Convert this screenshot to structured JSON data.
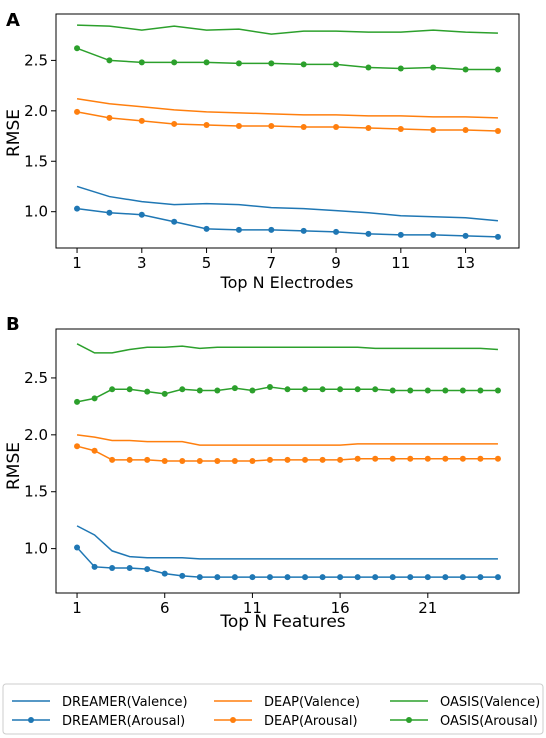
{
  "chart_data": [
    {
      "type": "line",
      "panel_label": "A",
      "xlabel": "Top N Electrodes",
      "ylabel": "RMSE",
      "x_ticks": [
        1,
        3,
        5,
        7,
        9,
        11,
        13
      ],
      "y_ticks": [
        1.0,
        1.5,
        2.0,
        2.5
      ],
      "x_tick_labels": [
        "1",
        "3",
        "5",
        "7",
        "9",
        "11",
        "13"
      ],
      "y_tick_labels": [
        "1.0",
        "1.5",
        "2.0",
        "2.5"
      ],
      "xlim": [
        0.35,
        14.65
      ],
      "ylim": [
        0.64,
        2.96
      ],
      "grid": false,
      "x": [
        1,
        2,
        3,
        4,
        5,
        6,
        7,
        8,
        9,
        10,
        11,
        12,
        13,
        14
      ],
      "series": [
        {
          "name": "DREAMER(Valence)",
          "color": "#1f77b4",
          "markers": false,
          "values": [
            1.25,
            1.15,
            1.1,
            1.07,
            1.08,
            1.07,
            1.04,
            1.03,
            1.01,
            0.99,
            0.96,
            0.95,
            0.94,
            0.91
          ]
        },
        {
          "name": "DREAMER(Arousal)",
          "color": "#1f77b4",
          "markers": true,
          "values": [
            1.03,
            0.99,
            0.97,
            0.9,
            0.83,
            0.82,
            0.82,
            0.81,
            0.8,
            0.78,
            0.77,
            0.77,
            0.76,
            0.75
          ]
        },
        {
          "name": "DEAP(Valence)",
          "color": "#ff7f0e",
          "markers": false,
          "values": [
            2.12,
            2.07,
            2.04,
            2.01,
            1.99,
            1.98,
            1.97,
            1.96,
            1.96,
            1.95,
            1.95,
            1.94,
            1.94,
            1.93
          ]
        },
        {
          "name": "DEAP(Arousal)",
          "color": "#ff7f0e",
          "markers": true,
          "values": [
            1.99,
            1.93,
            1.9,
            1.87,
            1.86,
            1.85,
            1.85,
            1.84,
            1.84,
            1.83,
            1.82,
            1.81,
            1.81,
            1.8
          ]
        },
        {
          "name": "OASIS(Valence)",
          "color": "#2ca02c",
          "markers": false,
          "values": [
            2.85,
            2.84,
            2.8,
            2.84,
            2.8,
            2.81,
            2.76,
            2.79,
            2.79,
            2.78,
            2.78,
            2.8,
            2.78,
            2.77
          ]
        },
        {
          "name": "OASIS(Arousal)",
          "color": "#2ca02c",
          "markers": true,
          "values": [
            2.62,
            2.5,
            2.48,
            2.48,
            2.48,
            2.47,
            2.47,
            2.46,
            2.46,
            2.43,
            2.42,
            2.43,
            2.41,
            2.41
          ]
        }
      ]
    },
    {
      "type": "line",
      "panel_label": "B",
      "xlabel": "Top N Features",
      "ylabel": "RMSE",
      "x_ticks": [
        1,
        6,
        11,
        16,
        21
      ],
      "y_ticks": [
        1.0,
        1.5,
        2.0,
        2.5
      ],
      "x_tick_labels": [
        "1",
        "6",
        "11",
        "16",
        "21"
      ],
      "y_tick_labels": [
        "1.0",
        "1.5",
        "2.0",
        "2.5"
      ],
      "xlim": [
        -0.2,
        26.2
      ],
      "ylim": [
        0.61,
        2.93
      ],
      "grid": false,
      "x": [
        1,
        2,
        3,
        4,
        5,
        6,
        7,
        8,
        9,
        10,
        11,
        12,
        13,
        14,
        15,
        16,
        17,
        18,
        19,
        20,
        21,
        22,
        23,
        24,
        25
      ],
      "series": [
        {
          "name": "DREAMER(Valence)",
          "color": "#1f77b4",
          "markers": false,
          "values": [
            1.2,
            1.12,
            0.98,
            0.93,
            0.92,
            0.92,
            0.92,
            0.91,
            0.91,
            0.91,
            0.91,
            0.91,
            0.91,
            0.91,
            0.91,
            0.91,
            0.91,
            0.91,
            0.91,
            0.91,
            0.91,
            0.91,
            0.91,
            0.91,
            0.91
          ]
        },
        {
          "name": "DREAMER(Arousal)",
          "color": "#1f77b4",
          "markers": true,
          "values": [
            1.01,
            0.84,
            0.83,
            0.83,
            0.82,
            0.78,
            0.76,
            0.75,
            0.75,
            0.75,
            0.75,
            0.75,
            0.75,
            0.75,
            0.75,
            0.75,
            0.75,
            0.75,
            0.75,
            0.75,
            0.75,
            0.75,
            0.75,
            0.75,
            0.75
          ]
        },
        {
          "name": "DEAP(Valence)",
          "color": "#ff7f0e",
          "markers": false,
          "values": [
            2.0,
            1.98,
            1.95,
            1.95,
            1.94,
            1.94,
            1.94,
            1.91,
            1.91,
            1.91,
            1.91,
            1.91,
            1.91,
            1.91,
            1.91,
            1.91,
            1.92,
            1.92,
            1.92,
            1.92,
            1.92,
            1.92,
            1.92,
            1.92,
            1.92
          ]
        },
        {
          "name": "DEAP(Arousal)",
          "color": "#ff7f0e",
          "markers": true,
          "values": [
            1.9,
            1.86,
            1.78,
            1.78,
            1.78,
            1.77,
            1.77,
            1.77,
            1.77,
            1.77,
            1.77,
            1.78,
            1.78,
            1.78,
            1.78,
            1.78,
            1.79,
            1.79,
            1.79,
            1.79,
            1.79,
            1.79,
            1.79,
            1.79,
            1.79
          ]
        },
        {
          "name": "OASIS(Valence)",
          "color": "#2ca02c",
          "markers": false,
          "values": [
            2.8,
            2.72,
            2.72,
            2.75,
            2.77,
            2.77,
            2.78,
            2.76,
            2.77,
            2.77,
            2.77,
            2.77,
            2.77,
            2.77,
            2.77,
            2.77,
            2.77,
            2.76,
            2.76,
            2.76,
            2.76,
            2.76,
            2.76,
            2.76,
            2.75
          ]
        },
        {
          "name": "OASIS(Arousal)",
          "color": "#2ca02c",
          "markers": true,
          "values": [
            2.29,
            2.32,
            2.4,
            2.4,
            2.38,
            2.36,
            2.4,
            2.39,
            2.39,
            2.41,
            2.39,
            2.42,
            2.4,
            2.4,
            2.4,
            2.4,
            2.4,
            2.4,
            2.39,
            2.39,
            2.39,
            2.39,
            2.39,
            2.39,
            2.39
          ]
        }
      ]
    }
  ],
  "legend": {
    "placement": "bottom",
    "entries": [
      {
        "label": "DREAMER(Valence)",
        "color": "#1f77b4",
        "markers": false
      },
      {
        "label": "DEAP(Valence)",
        "color": "#ff7f0e",
        "markers": false
      },
      {
        "label": "OASIS(Valence)",
        "color": "#2ca02c",
        "markers": false
      },
      {
        "label": "DREAMER(Arousal)",
        "color": "#1f77b4",
        "markers": true
      },
      {
        "label": "DEAP(Arousal)",
        "color": "#ff7f0e",
        "markers": true
      },
      {
        "label": "OASIS(Arousal)",
        "color": "#2ca02c",
        "markers": true
      }
    ]
  }
}
